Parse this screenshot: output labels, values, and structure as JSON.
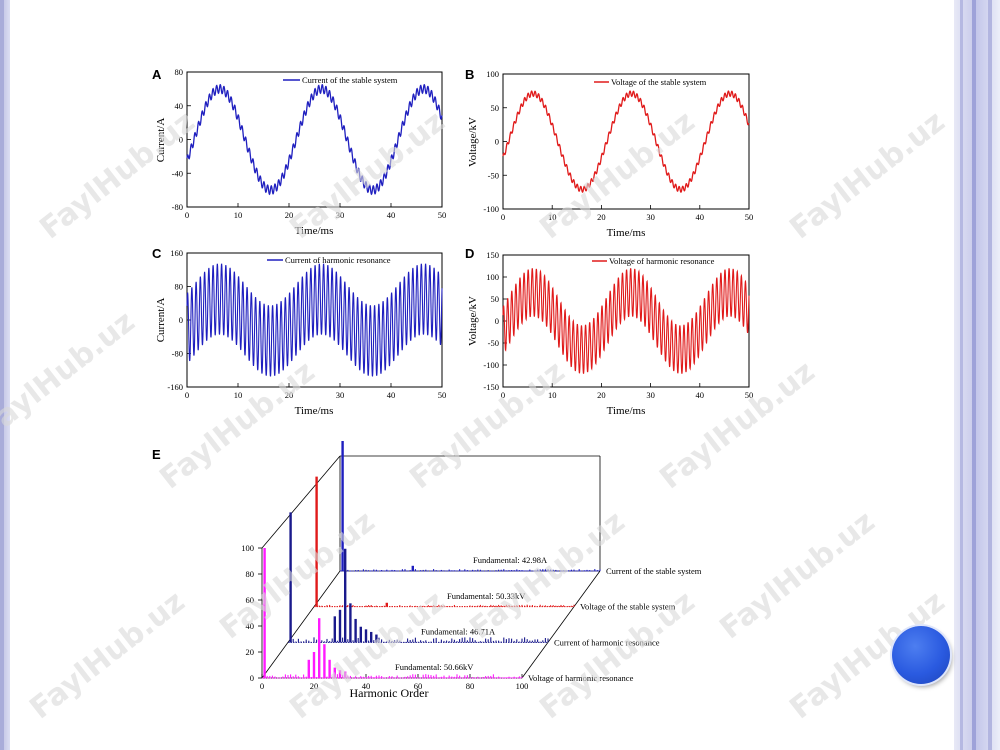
{
  "colors": {
    "blue": "#1f1fbf",
    "red": "#e01a1a",
    "navy": "#1a1a8c",
    "magenta": "#ff1aff",
    "accent_dot": "#2a5ae0"
  },
  "watermark": "FaylHub.uz",
  "chart_data": [
    {
      "id": "A",
      "panel_label": "A",
      "type": "line",
      "xlabel": "Time/ms",
      "ylabel": "Current/A",
      "xlim": [
        0,
        50
      ],
      "ylim": [
        -80,
        80
      ],
      "xticks": [
        0,
        10,
        20,
        30,
        40,
        50
      ],
      "yticks": [
        80,
        40,
        0,
        -40,
        -80
      ],
      "legend": "Current of the stable system",
      "legend_position": "top-right",
      "grid": false,
      "series": [
        {
          "name": "Current of the stable system",
          "color": "#1f1fbf",
          "fundamental_amplitude": 60,
          "fundamental_hz": 50,
          "harmonic_amplitude": 5,
          "harmonic_hz": 1400,
          "phase_deg": -25
        }
      ]
    },
    {
      "id": "B",
      "panel_label": "B",
      "type": "line",
      "xlabel": "Time/ms",
      "ylabel": "Voltage/kV",
      "xlim": [
        0,
        50
      ],
      "ylim": [
        -100,
        100
      ],
      "xticks": [
        0,
        10,
        20,
        30,
        40,
        50
      ],
      "yticks": [
        100,
        50,
        0,
        -50,
        -100
      ],
      "legend": "Voltage of the stable system",
      "legend_position": "top-right",
      "grid": false,
      "series": [
        {
          "name": "Voltage of the stable system",
          "color": "#e01a1a",
          "fundamental_amplitude": 71,
          "fundamental_hz": 50,
          "harmonic_amplitude": 4,
          "harmonic_hz": 1400,
          "phase_deg": -20
        }
      ]
    },
    {
      "id": "C",
      "panel_label": "C",
      "type": "line",
      "xlabel": "Time/ms",
      "ylabel": "Current/A",
      "xlim": [
        0,
        50
      ],
      "ylim": [
        -160,
        160
      ],
      "xticks": [
        0,
        10,
        20,
        30,
        40,
        50
      ],
      "yticks": [
        160,
        80,
        0,
        -80,
        -160
      ],
      "legend": "Current of harmonic resonance",
      "legend_position": "top-right",
      "grid": false,
      "series": [
        {
          "name": "Current of harmonic resonance",
          "color": "#1f1fbf",
          "fundamental_amplitude": 50,
          "fundamental_hz": 50,
          "harmonic_amplitude": 85,
          "harmonic_hz": 1200,
          "phase_deg": -25
        }
      ]
    },
    {
      "id": "D",
      "panel_label": "D",
      "type": "line",
      "xlabel": "Time/ms",
      "ylabel": "Voltage/kV",
      "xlim": [
        0,
        50
      ],
      "ylim": [
        -150,
        150
      ],
      "xticks": [
        0,
        10,
        20,
        30,
        40,
        50
      ],
      "yticks": [
        150,
        100,
        50,
        0,
        -50,
        -100,
        -150
      ],
      "legend": "Voltage of harmonic resonance",
      "legend_position": "top-right",
      "grid": false,
      "series": [
        {
          "name": "Voltage of harmonic resonance",
          "color": "#e01a1a",
          "fundamental_amplitude": 65,
          "fundamental_hz": 50,
          "harmonic_amplitude": 55,
          "harmonic_hz": 1200,
          "phase_deg": -20
        }
      ]
    },
    {
      "id": "E",
      "panel_label": "E",
      "type": "bar",
      "xlabel": "Harmonic Order",
      "xlim": [
        0,
        100
      ],
      "xticks": [
        0,
        20,
        40,
        60,
        80,
        100
      ],
      "ylim": [
        0,
        100
      ],
      "yticks": [
        0,
        20,
        40,
        60,
        80,
        100
      ],
      "series": [
        {
          "name": "Current of the stable system",
          "annotation": "Fundamental: 42.98A",
          "color": "#1f1fbf",
          "bars": [
            [
              1,
              100
            ],
            [
              28,
              4
            ]
          ],
          "noise": 1.5
        },
        {
          "name": "Voltage of the stable system",
          "annotation": "Fundamental: 50.33kV",
          "color": "#e01a1a",
          "bars": [
            [
              1,
              100
            ],
            [
              28,
              3
            ]
          ],
          "noise": 1.5
        },
        {
          "name": "Current of harmonic resonance",
          "annotation": "Fundamental: 46.71A",
          "color": "#1a1a8c",
          "bars": [
            [
              1,
              100
            ],
            [
              18,
              20
            ],
            [
              20,
              25
            ],
            [
              22,
              72
            ],
            [
              24,
              30
            ],
            [
              26,
              18
            ],
            [
              28,
              12
            ],
            [
              30,
              10
            ],
            [
              32,
              8
            ],
            [
              34,
              6
            ]
          ],
          "noise": 4
        },
        {
          "name": "Voltage of harmonic resonance",
          "annotation": "Fundamental: 50.66kV",
          "color": "#ff1aff",
          "bars": [
            [
              1,
              100
            ],
            [
              18,
              14
            ],
            [
              20,
              20
            ],
            [
              22,
              46
            ],
            [
              24,
              26
            ],
            [
              26,
              14
            ],
            [
              28,
              8
            ],
            [
              30,
              6
            ],
            [
              32,
              5
            ]
          ],
          "noise": 3
        }
      ]
    }
  ]
}
